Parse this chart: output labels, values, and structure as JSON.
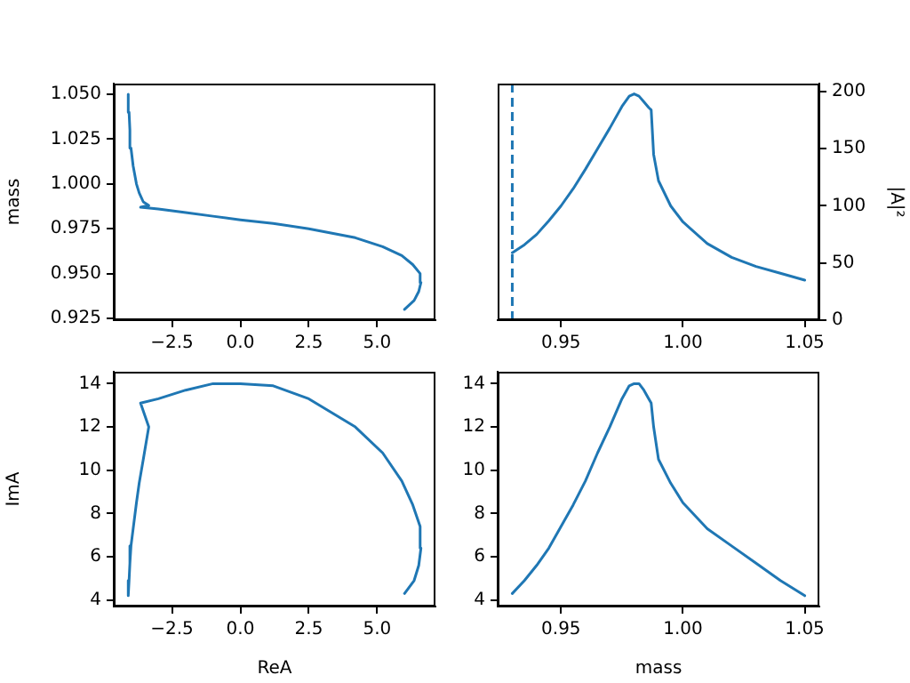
{
  "chart_data": [
    {
      "type": "line",
      "ylabel": "mass",
      "x": [
        6.0,
        6.35,
        6.52,
        6.6,
        6.57,
        6.3,
        5.9,
        5.2,
        4.2,
        2.5,
        1.2,
        0.0,
        -1.0,
        -2.0,
        -3.0,
        -3.65,
        -3.35,
        -3.55,
        -3.7,
        -3.8,
        -3.92,
        -4.0,
        -4.04,
        -4.07,
        -4.1
      ],
      "series": [
        {
          "color": "#1f77b4",
          "values": [
            0.93,
            0.935,
            0.94,
            0.945,
            0.95,
            0.955,
            0.96,
            0.965,
            0.97,
            0.975,
            0.978,
            0.98,
            0.982,
            0.984,
            0.986,
            0.987,
            0.988,
            0.99,
            0.995,
            1.0,
            1.01,
            1.02,
            1.03,
            1.04,
            1.05
          ]
        }
      ],
      "xlim": [
        -4.63,
        7.13
      ],
      "xticks": [
        {
          "value": -2.5,
          "label": "−2.5"
        },
        {
          "value": 0,
          "label": "0.0"
        },
        {
          "value": 2.5,
          "label": "2.5"
        },
        {
          "value": 5,
          "label": "5.0"
        }
      ],
      "ylim": [
        0.924,
        1.056
      ],
      "yticks": [
        {
          "value": 0.925,
          "label": "0.925"
        },
        {
          "value": 0.95,
          "label": "0.950"
        },
        {
          "value": 0.975,
          "label": "0.975"
        },
        {
          "value": 1,
          "label": "1.000"
        },
        {
          "value": 1.025,
          "label": "1.025"
        },
        {
          "value": 1.05,
          "label": "1.050"
        }
      ],
      "grid": false,
      "legend": false
    },
    {
      "type": "line",
      "y2label": "|A|²",
      "x": [
        0.93,
        0.935,
        0.94,
        0.945,
        0.95,
        0.955,
        0.96,
        0.965,
        0.97,
        0.975,
        0.978,
        0.98,
        0.982,
        0.984,
        0.986,
        0.987,
        0.988,
        0.99,
        0.995,
        1.0,
        1.01,
        1.02,
        1.03,
        1.04,
        1.05
      ],
      "series": [
        {
          "color": "#1f77b4",
          "axis": "y2",
          "values": [
            59,
            66,
            75,
            87,
            100,
            115,
            132,
            150,
            168,
            187,
            196,
            198,
            196,
            191,
            186,
            184,
            145,
            122,
            100,
            86,
            67,
            55,
            47,
            41,
            35
          ]
        }
      ],
      "xlim": [
        0.924,
        1.056
      ],
      "xticks": [
        {
          "value": 0.95,
          "label": "0.95"
        },
        {
          "value": 1,
          "label": "1.00"
        },
        {
          "value": 1.05,
          "label": "1.05"
        }
      ],
      "y2lim": [
        0,
        207
      ],
      "y2ticks": [
        0,
        50,
        100,
        150,
        200
      ],
      "ref_lines": [
        {
          "axis": "x",
          "value": 0.93,
          "color": "#1f77b4",
          "line_style": "dashed"
        }
      ],
      "grid": false,
      "legend": false
    },
    {
      "type": "line",
      "xlabel": "ReA",
      "ylabel": "ImA",
      "x": [
        6.0,
        6.35,
        6.52,
        6.6,
        6.57,
        6.3,
        5.9,
        5.2,
        4.2,
        2.5,
        1.2,
        0.0,
        -1.0,
        -2.0,
        -3.0,
        -3.65,
        -3.35,
        -3.55,
        -3.7,
        -3.8,
        -3.92,
        -4.0,
        -4.04,
        -4.07,
        -4.1
      ],
      "series": [
        {
          "color": "#1f77b4",
          "values": [
            4.3,
            4.9,
            5.6,
            6.4,
            7.4,
            8.4,
            9.5,
            10.8,
            12.0,
            13.3,
            13.9,
            14.0,
            14.0,
            13.7,
            13.3,
            13.1,
            12.0,
            10.5,
            9.4,
            8.5,
            7.3,
            6.5,
            5.7,
            4.9,
            4.2
          ]
        }
      ],
      "xlim": [
        -4.63,
        7.13
      ],
      "xticks": [
        {
          "value": -2.5,
          "label": "−2.5"
        },
        {
          "value": 0,
          "label": "0.0"
        },
        {
          "value": 2.5,
          "label": "2.5"
        },
        {
          "value": 5,
          "label": "5.0"
        }
      ],
      "ylim": [
        3.7,
        14.55
      ],
      "yticks": [
        4,
        6,
        8,
        10,
        12,
        14
      ],
      "grid": false,
      "legend": false
    },
    {
      "type": "line",
      "xlabel": "mass",
      "x": [
        0.93,
        0.935,
        0.94,
        0.945,
        0.95,
        0.955,
        0.96,
        0.965,
        0.97,
        0.975,
        0.978,
        0.98,
        0.982,
        0.984,
        0.986,
        0.987,
        0.988,
        0.99,
        0.995,
        1.0,
        1.01,
        1.02,
        1.03,
        1.04,
        1.05
      ],
      "series": [
        {
          "color": "#1f77b4",
          "values": [
            4.3,
            4.9,
            5.6,
            6.4,
            7.4,
            8.4,
            9.5,
            10.8,
            12.0,
            13.3,
            13.9,
            14.0,
            14.0,
            13.7,
            13.3,
            13.1,
            12.0,
            10.5,
            9.4,
            8.5,
            7.3,
            6.5,
            5.7,
            4.9,
            4.2
          ]
        }
      ],
      "xlim": [
        0.924,
        1.056
      ],
      "xticks": [
        {
          "value": 0.95,
          "label": "0.95"
        },
        {
          "value": 1,
          "label": "1.00"
        },
        {
          "value": 1.05,
          "label": "1.05"
        }
      ],
      "ylim": [
        3.7,
        14.55
      ],
      "yticks": [
        4,
        6,
        8,
        10,
        12,
        14
      ],
      "grid": false,
      "legend": false
    }
  ]
}
